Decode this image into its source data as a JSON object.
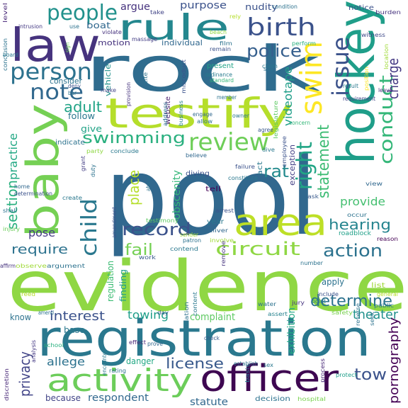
{
  "cloud": {
    "words": [
      {
        "text": "pool",
        "color": "#31688e"
      },
      {
        "text": "evidence",
        "color": "#8fd744"
      },
      {
        "text": "registration",
        "color": "#2a788e"
      },
      {
        "text": "rock",
        "color": "#2f6c8e"
      },
      {
        "text": "law",
        "color": "#46337e"
      },
      {
        "text": "hockey",
        "color": "#1f9e89"
      },
      {
        "text": "testify",
        "color": "#b5de2b"
      },
      {
        "text": "baby",
        "color": "#75d054"
      },
      {
        "text": "area",
        "color": "#bddf26"
      },
      {
        "text": "officer",
        "color": "#3e0751"
      },
      {
        "text": "activity",
        "color": "#6ccd5a"
      },
      {
        "text": "rule",
        "color": "#24878e"
      },
      {
        "text": "people",
        "color": "#21918c"
      },
      {
        "text": "birth",
        "color": "#3b528b"
      },
      {
        "text": "person",
        "color": "#2c728e"
      },
      {
        "text": "swim",
        "color": "#fde725"
      },
      {
        "text": "issue",
        "color": "#3b528b"
      },
      {
        "text": "note",
        "color": "#31688e"
      },
      {
        "text": "police",
        "color": "#355f8d"
      },
      {
        "text": "review",
        "color": "#6ece58"
      },
      {
        "text": "conduct",
        "color": "#35b779"
      },
      {
        "text": "charge",
        "color": "#443983"
      },
      {
        "text": "statement",
        "color": "#3dbc74"
      },
      {
        "text": "right",
        "color": "#21a585"
      },
      {
        "text": "child",
        "color": "#2a788e"
      },
      {
        "text": "swimming",
        "color": "#2ab07f"
      },
      {
        "text": "record",
        "color": "#3b528b"
      },
      {
        "text": "circuit",
        "color": "#8fd744"
      },
      {
        "text": "action",
        "color": "#2c728e"
      },
      {
        "text": "hearing",
        "color": "#25848e"
      },
      {
        "text": "rat",
        "color": "#238a8d"
      },
      {
        "text": "adult",
        "color": "#20a386"
      },
      {
        "text": "section",
        "color": "#2ab07f"
      },
      {
        "text": "practice",
        "color": "#22a884"
      },
      {
        "text": "place",
        "color": "#b5de2b"
      },
      {
        "text": "determine",
        "color": "#2c728e"
      },
      {
        "text": "tow",
        "color": "#3b528b"
      },
      {
        "text": "privacy",
        "color": "#414487"
      },
      {
        "text": "interest",
        "color": "#3b528b"
      },
      {
        "text": "require",
        "color": "#2c728e"
      },
      {
        "text": "fail",
        "color": "#75d054"
      },
      {
        "text": "pose",
        "color": "#443983"
      },
      {
        "text": "license",
        "color": "#38598c"
      },
      {
        "text": "provide",
        "color": "#44bf70"
      },
      {
        "text": "theater",
        "color": "#21918c"
      },
      {
        "text": "exhibition",
        "color": "#22a884"
      },
      {
        "text": "pornography",
        "color": "#440154"
      },
      {
        "text": "towing",
        "color": "#1f9e89"
      },
      {
        "text": "complaint",
        "color": "#5ec962"
      },
      {
        "text": "allege",
        "color": "#2c728e"
      },
      {
        "text": "respondent",
        "color": "#31688e"
      },
      {
        "text": "statute",
        "color": "#31688e"
      },
      {
        "text": "videotape",
        "color": "#1f9e89"
      },
      {
        "text": "obscenity",
        "color": "#35b779"
      },
      {
        "text": "argue",
        "color": "#46337e"
      },
      {
        "text": "purpose",
        "color": "#3b528b"
      },
      {
        "text": "nudity",
        "color": "#3b528b"
      },
      {
        "text": "boat",
        "color": "#31688e"
      },
      {
        "text": "motion",
        "color": "#46337e"
      },
      {
        "text": "individual",
        "color": "#31688e"
      },
      {
        "text": "consider",
        "color": "#2c728e"
      },
      {
        "text": "follow",
        "color": "#2a788e"
      },
      {
        "text": "give",
        "color": "#20a386"
      },
      {
        "text": "indicate",
        "color": "#2c728e"
      },
      {
        "text": "vehicle",
        "color": "#21918c"
      },
      {
        "text": "regulation",
        "color": "#3dbc74"
      },
      {
        "text": "finding",
        "color": "#1f9e89"
      },
      {
        "text": "danger",
        "color": "#22a884"
      },
      {
        "text": "base",
        "color": "#2a788e"
      },
      {
        "text": "know",
        "color": "#2c728e"
      },
      {
        "text": "because",
        "color": "#414487"
      },
      {
        "text": "apply",
        "color": "#2c728e"
      },
      {
        "text": "exception",
        "color": "#433e85"
      },
      {
        "text": "tell",
        "color": "#440154"
      },
      {
        "text": "website",
        "color": "#481a6c"
      },
      {
        "text": "present",
        "color": "#20a386"
      },
      {
        "text": "year",
        "color": "#2a788e"
      },
      {
        "text": "diving",
        "color": "#3b528b"
      },
      {
        "text": "act",
        "color": "#2a788e"
      },
      {
        "text": "level",
        "color": "#482878"
      },
      {
        "text": "conclusion",
        "color": "#2c728e"
      },
      {
        "text": "intrusion",
        "color": "#443983"
      },
      {
        "text": "take",
        "color": "#414487"
      },
      {
        "text": "rely",
        "color": "#b5de2b"
      },
      {
        "text": "notice",
        "color": "#3b528b"
      },
      {
        "text": "burden",
        "color": "#46337e"
      },
      {
        "text": "witness",
        "color": "#3e4989"
      },
      {
        "text": "location",
        "color": "#a0da39"
      },
      {
        "text": "massage",
        "color": "#433e85"
      },
      {
        "text": "film",
        "color": "#2c728e"
      },
      {
        "text": "claim",
        "color": "#2a788e"
      },
      {
        "text": "perform",
        "color": "#2ab07f"
      },
      {
        "text": "remain",
        "color": "#3b528b"
      },
      {
        "text": "ordinance",
        "color": "#287c8e"
      },
      {
        "text": "standard",
        "color": "#35b779"
      },
      {
        "text": "say",
        "color": "#2c728e"
      },
      {
        "text": "position",
        "color": "#fde725"
      },
      {
        "text": "result",
        "color": "#2a788e"
      },
      {
        "text": "requirement",
        "color": "#414487"
      },
      {
        "text": "leave",
        "color": "#46337e"
      },
      {
        "text": "owner",
        "color": "#2a788e"
      },
      {
        "text": "agree",
        "color": "#38598c"
      },
      {
        "text": "employee",
        "color": "#3b528b"
      },
      {
        "text": "legislature",
        "color": "#5ec962"
      },
      {
        "text": "concern",
        "color": "#35b779"
      },
      {
        "text": "engage",
        "color": "#31688e"
      },
      {
        "text": "allow",
        "color": "#2c728e"
      },
      {
        "text": "failure",
        "color": "#3b528b"
      },
      {
        "text": "dive",
        "color": "#2a788e"
      },
      {
        "text": "believe",
        "color": "#31688e"
      },
      {
        "text": "conclude",
        "color": "#2a788e"
      },
      {
        "text": "party",
        "color": "#8fd744"
      },
      {
        "text": "grant",
        "color": "#433e85"
      },
      {
        "text": "provision",
        "color": "#46337e"
      },
      {
        "text": "make",
        "color": "#414487"
      },
      {
        "text": "cite",
        "color": "#2c728e"
      },
      {
        "text": "address",
        "color": "#2c728e"
      },
      {
        "text": "business",
        "color": "#26828e"
      },
      {
        "text": "miscoduct",
        "color": "#3b528b"
      },
      {
        "text": "constitute",
        "color": "#2a788e"
      },
      {
        "text": "ask",
        "color": "#38598c"
      },
      {
        "text": "view",
        "color": "#31688e"
      },
      {
        "text": "occur",
        "color": "#2c728e"
      },
      {
        "text": "roadblock",
        "color": "#1fa088"
      },
      {
        "text": "reason",
        "color": "#440154"
      },
      {
        "text": "arrest",
        "color": "#3b528b"
      },
      {
        "text": "deliver",
        "color": "#31688e"
      },
      {
        "text": "involve",
        "color": "#a0da39"
      },
      {
        "text": "patron",
        "color": "#2c728e"
      },
      {
        "text": "testimony",
        "color": "#5ec962"
      },
      {
        "text": "contend",
        "color": "#2a788e"
      },
      {
        "text": "remove",
        "color": "#46337e"
      },
      {
        "text": "work",
        "color": "#38598c"
      },
      {
        "text": "observe",
        "color": "#a0da39"
      },
      {
        "text": "argument",
        "color": "#2c728e"
      },
      {
        "text": "affirm",
        "color": "#46337e"
      },
      {
        "text": "number",
        "color": "#2c728e"
      },
      {
        "text": "list",
        "color": "#a0da39"
      },
      {
        "text": "include",
        "color": "#3b528b"
      },
      {
        "text": "point",
        "color": "#2a788e"
      },
      {
        "text": "safety",
        "color": "#7ad151"
      },
      {
        "text": "general",
        "color": "#b5de2b"
      },
      {
        "text": "public",
        "color": "#2a788e"
      },
      {
        "text": "jury",
        "color": "#46337e"
      },
      {
        "text": "seek",
        "color": "#2c728e"
      },
      {
        "text": "reverse",
        "color": "#2c728e"
      },
      {
        "text": "assert",
        "color": "#26828e"
      },
      {
        "text": "water",
        "color": "#2c728e"
      },
      {
        "text": "content",
        "color": "#2a788e"
      },
      {
        "text": "violation",
        "color": "#2c728e"
      },
      {
        "text": "effect",
        "color": "#482878"
      },
      {
        "text": "day",
        "color": "#38598c"
      },
      {
        "text": "amend",
        "color": "#2c728e"
      },
      {
        "text": "reed",
        "color": "#b5de2b"
      },
      {
        "text": "school",
        "color": "#2ab07f"
      },
      {
        "text": "analysis",
        "color": "#443983"
      },
      {
        "text": "encounter",
        "color": "#2a788e"
      },
      {
        "text": "rating",
        "color": "#2c728e"
      },
      {
        "text": "prove",
        "color": "#31688e"
      },
      {
        "text": "check",
        "color": "#38598c"
      },
      {
        "text": "establish",
        "color": "#2c728e"
      },
      {
        "text": "sex",
        "color": "#2a788e"
      },
      {
        "text": "basis",
        "color": "#2a788e"
      },
      {
        "text": "process",
        "color": "#482878"
      },
      {
        "text": "protect",
        "color": "#1f9e89"
      },
      {
        "text": "hospital",
        "color": "#7ad151"
      },
      {
        "text": "decision",
        "color": "#2c728e"
      },
      {
        "text": "discretion",
        "color": "#482878"
      },
      {
        "text": "determination",
        "color": "#3b528b"
      },
      {
        "text": "home",
        "color": "#31688e"
      },
      {
        "text": "create",
        "color": "#2a788e"
      },
      {
        "text": "shall",
        "color": "#2c728e"
      },
      {
        "text": "injury",
        "color": "#6ccd5a"
      },
      {
        "text": "amendment",
        "color": "#3b528b"
      },
      {
        "text": "sender",
        "color": "#a0da39"
      },
      {
        "text": "abuse",
        "color": "#2c728e"
      },
      {
        "text": "duty",
        "color": "#2c728e"
      },
      {
        "text": "board",
        "color": "#2a788e"
      },
      {
        "text": "violate",
        "color": "#46337e"
      },
      {
        "text": "member",
        "color": "#2c728e"
      },
      {
        "text": "beach",
        "color": "#8fd744"
      },
      {
        "text": "deny",
        "color": "#3b528b"
      },
      {
        "text": "bar",
        "color": "#2c728e"
      },
      {
        "text": "condition",
        "color": "#2c728e"
      },
      {
        "text": "use",
        "color": "#2c728e"
      },
      {
        "text": "sign",
        "color": "#6ccd5a"
      }
    ]
  }
}
